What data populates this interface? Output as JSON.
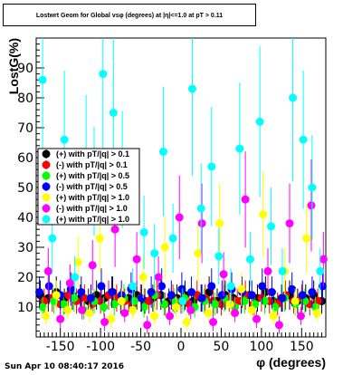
{
  "chart_data": {
    "type": "scatter",
    "title": "Lostwrt Geom for Global vsφ (degrees) at |η|<=1.0 at pT > 0.11",
    "xlabel": "φ (degrees)",
    "ylabel": "LostG(%)",
    "xlim": [
      -180,
      180
    ],
    "ylim": [
      0,
      100
    ],
    "x_ticks": [
      -150,
      -100,
      -50,
      0,
      50,
      100,
      150
    ],
    "y_ticks": [
      10,
      20,
      30,
      40,
      50,
      60,
      70,
      80,
      90
    ],
    "grid": false,
    "legend_position": "upper-left inside plot",
    "series": [
      {
        "name": "(+) with pT/|q| > 0.1",
        "color": "#000000",
        "marker": "circle",
        "x": [
          -175,
          -165,
          -155,
          -145,
          -135,
          -125,
          -115,
          -105,
          -95,
          -85,
          -75,
          -65,
          -55,
          -45,
          -35,
          -25,
          -15,
          -5,
          5,
          15,
          25,
          35,
          45,
          55,
          65,
          75,
          85,
          95,
          105,
          115,
          125,
          135,
          145,
          155,
          165,
          175
        ],
        "y": [
          14,
          13,
          15,
          12,
          14,
          13,
          12,
          14,
          13,
          15,
          12,
          13,
          14,
          12,
          13,
          14,
          12,
          13,
          14,
          12,
          13,
          15,
          12,
          14,
          13,
          12,
          14,
          13,
          15,
          12,
          13,
          14,
          12,
          13,
          14,
          12
        ]
      },
      {
        "name": "(-) with pT/|q| > 0.1",
        "color": "#ff0000",
        "marker": "circle",
        "x": [
          -170,
          -160,
          -150,
          -140,
          -130,
          -120,
          -110,
          -100,
          -90,
          -80,
          -70,
          -60,
          -50,
          -40,
          -30,
          -20,
          -10,
          0,
          10,
          20,
          30,
          40,
          50,
          60,
          70,
          80,
          90,
          100,
          110,
          120,
          130,
          140,
          150,
          160,
          170
        ],
        "y": [
          12,
          13,
          11,
          14,
          12,
          13,
          11,
          12,
          14,
          13,
          12,
          11,
          13,
          12,
          14,
          11,
          13,
          12,
          11,
          14,
          13,
          12,
          11,
          13,
          12,
          14,
          11,
          13,
          12,
          11,
          14,
          12,
          13,
          11,
          12
        ]
      },
      {
        "name": "(+) with pT/|q| > 0.5",
        "color": "#00ff00",
        "marker": "circle",
        "x": [
          -172,
          -158,
          -146,
          -133,
          -121,
          -108,
          -96,
          -83,
          -71,
          -58,
          -46,
          -33,
          -21,
          -8,
          4,
          17,
          29,
          42,
          54,
          67,
          79,
          92,
          104,
          117,
          129,
          142,
          154,
          167
        ],
        "y": [
          10,
          12,
          11,
          13,
          9,
          12,
          10,
          11,
          13,
          12,
          10,
          14,
          11,
          12,
          13,
          10,
          12,
          11,
          13,
          10,
          12,
          11,
          12,
          10,
          13,
          11,
          12,
          10
        ]
      },
      {
        "name": "(-) with pT/|q| > 0.5",
        "color": "#0000ff",
        "marker": "circle",
        "x": [
          -176,
          -164,
          -150,
          -137,
          -124,
          -112,
          -99,
          -86,
          -74,
          -62,
          -49,
          -37,
          -24,
          -12,
          1,
          13,
          26,
          38,
          51,
          63,
          76,
          88,
          101,
          113,
          126,
          138,
          151,
          163,
          176
        ],
        "y": [
          15,
          17,
          14,
          16,
          15,
          13,
          17,
          15,
          14,
          16,
          13,
          15,
          17,
          14,
          16,
          15,
          13,
          17,
          14,
          16,
          15,
          14,
          17,
          15,
          13,
          16,
          14,
          15,
          17
        ]
      },
      {
        "name": "(+) with pT/|q| > 1.0",
        "color": "#ffff00",
        "marker": "circle",
        "x": [
          -168,
          -155,
          -141,
          -128,
          -114,
          -101,
          -87,
          -74,
          -60,
          -47,
          -33,
          -20,
          -6,
          7,
          21,
          34,
          48,
          61,
          75,
          88,
          102,
          115,
          129,
          142,
          156,
          169
        ],
        "y": [
          7,
          14,
          9,
          25,
          8,
          33,
          6,
          12,
          9,
          20,
          7,
          30,
          10,
          5,
          28,
          8,
          38,
          11,
          16,
          9,
          41,
          7,
          22,
          12,
          33,
          8
        ]
      },
      {
        "name": "(-) with pT/|q| > 1.0",
        "color": "#ff00ff",
        "marker": "circle",
        "x": [
          -165,
          -150,
          -138,
          -123,
          -110,
          -95,
          -82,
          -70,
          -55,
          -42,
          -28,
          -14,
          -2,
          12,
          26,
          40,
          53,
          67,
          80,
          94,
          108,
          122,
          135,
          149,
          162,
          177
        ],
        "y": [
          22,
          6,
          18,
          9,
          24,
          5,
          36,
          8,
          26,
          4,
          20,
          7,
          40,
          9,
          38,
          5,
          21,
          8,
          46,
          6,
          22,
          4,
          38,
          7,
          44,
          26
        ]
      },
      {
        "name": "(+) with pT/|q| > 1.0",
        "color": "#00ffff",
        "marker": "circle",
        "x": [
          -172,
          -160,
          -145,
          -132,
          -118,
          -108,
          -97,
          -84,
          -73,
          -60,
          -46,
          -33,
          -22,
          -10,
          2,
          14,
          25,
          38,
          47,
          62,
          73,
          86,
          98,
          112,
          126,
          139,
          152,
          163,
          173
        ],
        "y": [
          86,
          33,
          66,
          20,
          60,
          52,
          88,
          75,
          56,
          17,
          35,
          28,
          62,
          33,
          12,
          83,
          43,
          57,
          27,
          17,
          63,
          26,
          72,
          37,
          22,
          80,
          66,
          50,
          22
        ]
      }
    ]
  },
  "footer": {
    "timestamp": "Sun Apr 10 08:40:17 2016"
  }
}
